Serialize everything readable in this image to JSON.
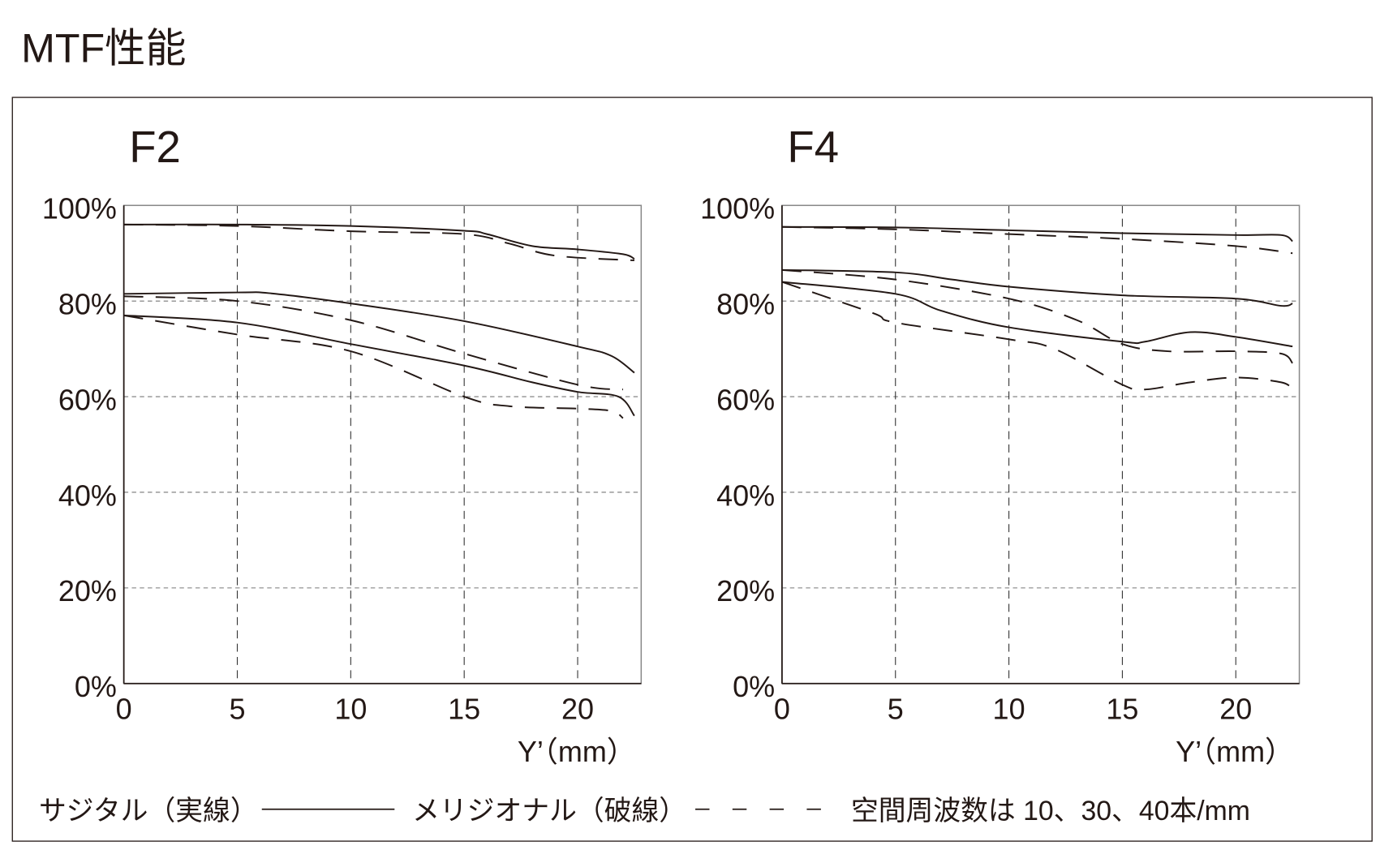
{
  "title": "MTF性能",
  "legend": {
    "sagittal": "サジタル（実線）",
    "meridional": "メリジオナル（破線）",
    "frequencies": "空間周波数は 10、30、40本/mm"
  },
  "colors": {
    "line": "#231815",
    "grid": "#777777",
    "frame": "#888888"
  },
  "chart_data": [
    {
      "type": "line",
      "title": "F2",
      "xlabel": "Y’（mm）",
      "ylabel": "",
      "xlim": [
        0,
        22.8
      ],
      "ylim": [
        0,
        100
      ],
      "xticks": [
        0,
        5,
        10,
        15,
        20
      ],
      "xtick_labels": [
        "0",
        "5",
        "10",
        "15",
        "20"
      ],
      "yticks": [
        0,
        20,
        40,
        60,
        80,
        100
      ],
      "ytick_labels": [
        "0%",
        "20%",
        "40%",
        "60%",
        "80%",
        "100%"
      ],
      "grid": true,
      "series": [
        {
          "name": "Sagittal 10 lp/mm",
          "style": "solid",
          "points": [
            [
              0,
              96
            ],
            [
              5,
              96
            ],
            [
              10,
              95.7
            ],
            [
              15,
              94.7
            ],
            [
              16,
              94
            ],
            [
              18,
              91.5
            ],
            [
              20,
              90.8
            ],
            [
              22,
              89.8
            ],
            [
              22.5,
              88.8
            ]
          ]
        },
        {
          "name": "Meridional 10 lp/mm",
          "style": "dashed",
          "points": [
            [
              0,
              96
            ],
            [
              5,
              95.7
            ],
            [
              10,
              94.6
            ],
            [
              15,
              94
            ],
            [
              17,
              92
            ],
            [
              19,
              89.5
            ],
            [
              22.5,
              88.5
            ]
          ]
        },
        {
          "name": "Sagittal 30 lp/mm",
          "style": "solid",
          "points": [
            [
              0,
              81.5
            ],
            [
              5,
              81.8
            ],
            [
              6.5,
              81.6
            ],
            [
              10,
              79.5
            ],
            [
              15,
              75.8
            ],
            [
              20,
              70.5
            ],
            [
              21.5,
              68.5
            ],
            [
              22.5,
              65
            ]
          ]
        },
        {
          "name": "Meridional 30 lp/mm",
          "style": "dashed",
          "points": [
            [
              0,
              81
            ],
            [
              5,
              80
            ],
            [
              10,
              76
            ],
            [
              15,
              69
            ],
            [
              20,
              62.5
            ],
            [
              22,
              61.5
            ]
          ]
        },
        {
          "name": "Sagittal 40 lp/mm",
          "style": "solid",
          "points": [
            [
              0,
              77
            ],
            [
              5,
              75.5
            ],
            [
              10,
              71
            ],
            [
              15,
              66.5
            ],
            [
              18,
              63
            ],
            [
              20,
              61
            ],
            [
              21.8,
              60
            ],
            [
              22.5,
              56
            ]
          ]
        },
        {
          "name": "Meridional 40 lp/mm",
          "style": "dashed",
          "points": [
            [
              0,
              77
            ],
            [
              5,
              73
            ],
            [
              10,
              69.5
            ],
            [
              15,
              60
            ],
            [
              17,
              58
            ],
            [
              20,
              57.5
            ],
            [
              21.5,
              57
            ],
            [
              22,
              55.5
            ]
          ]
        }
      ]
    },
    {
      "type": "line",
      "title": "F4",
      "xlabel": "Y’（mm）",
      "ylabel": "",
      "xlim": [
        0,
        22.8
      ],
      "ylim": [
        0,
        100
      ],
      "xticks": [
        0,
        5,
        10,
        15,
        20
      ],
      "xtick_labels": [
        "0",
        "5",
        "10",
        "15",
        "20"
      ],
      "yticks": [
        0,
        20,
        40,
        60,
        80,
        100
      ],
      "ytick_labels": [
        "0%",
        "20%",
        "40%",
        "60%",
        "80%",
        "100%"
      ],
      "grid": true,
      "series": [
        {
          "name": "Sagittal 10 lp/mm",
          "style": "solid",
          "points": [
            [
              0,
              95.5
            ],
            [
              5,
              95.4
            ],
            [
              10,
              94.8
            ],
            [
              15,
              94.2
            ],
            [
              20,
              93.8
            ],
            [
              22,
              93.8
            ],
            [
              22.5,
              92.5
            ]
          ]
        },
        {
          "name": "Meridional 10 lp/mm",
          "style": "dashed",
          "points": [
            [
              0,
              95.5
            ],
            [
              5,
              95
            ],
            [
              10,
              94
            ],
            [
              15,
              93
            ],
            [
              20,
              91.5
            ],
            [
              22.5,
              90
            ]
          ]
        },
        {
          "name": "Sagittal 30 lp/mm",
          "style": "solid",
          "points": [
            [
              0,
              86.5
            ],
            [
              5,
              86
            ],
            [
              7.5,
              84.5
            ],
            [
              10,
              83
            ],
            [
              15,
              81.2
            ],
            [
              20,
              80.5
            ],
            [
              22,
              79
            ],
            [
              22.5,
              79.5
            ]
          ]
        },
        {
          "name": "Meridional 30 lp/mm",
          "style": "dashed",
          "points": [
            [
              0,
              86.5
            ],
            [
              5,
              84.5
            ],
            [
              10,
              80.5
            ],
            [
              13,
              76
            ],
            [
              15,
              71
            ],
            [
              17,
              69.5
            ],
            [
              20,
              69.5
            ],
            [
              22,
              69
            ],
            [
              22.5,
              67
            ]
          ]
        },
        {
          "name": "Sagittal 40 lp/mm",
          "style": "solid",
          "points": [
            [
              0,
              84
            ],
            [
              5,
              81.5
            ],
            [
              7,
              78
            ],
            [
              10,
              74.5
            ],
            [
              15,
              71.5
            ],
            [
              16,
              71.5
            ],
            [
              18,
              73.5
            ],
            [
              20,
              72.5
            ],
            [
              22.5,
              70.5
            ]
          ]
        },
        {
          "name": "Meridional 40 lp/mm",
          "style": "dashed",
          "points": [
            [
              0,
              84
            ],
            [
              4,
              77.5
            ],
            [
              5,
              75.5
            ],
            [
              10,
              72
            ],
            [
              12,
              70
            ],
            [
              15,
              62.5
            ],
            [
              16,
              61.5
            ],
            [
              18,
              63
            ],
            [
              20,
              64
            ],
            [
              22,
              63
            ],
            [
              22.5,
              61.5
            ]
          ]
        }
      ]
    }
  ]
}
